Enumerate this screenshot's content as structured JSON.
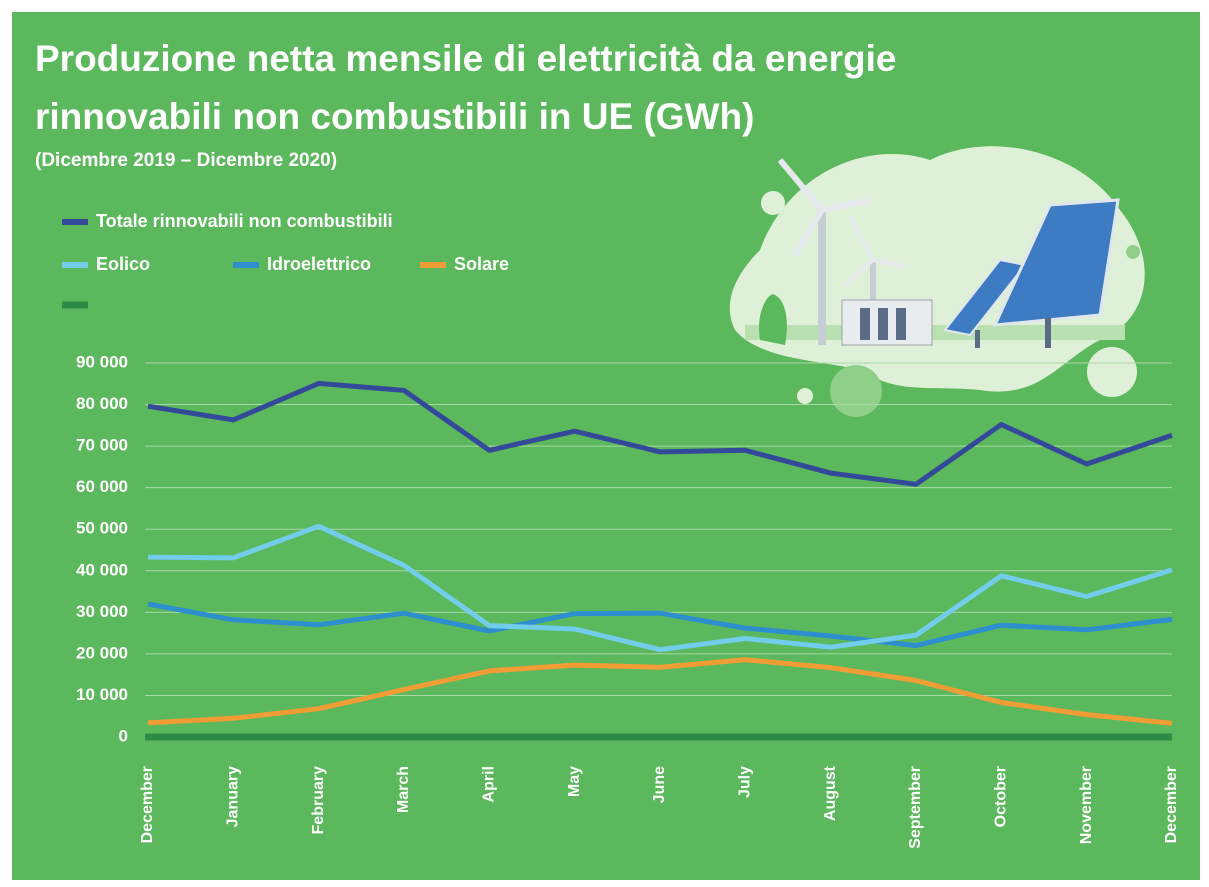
{
  "chart_data": {
    "type": "line",
    "title": "Produzione netta mensile di elettricità da energie rinnovabili non combustibili in UE (GWh)",
    "subtitle": "(Dicembre 2019 – Dicembre 2020)",
    "categories": [
      "December",
      "January",
      "February",
      "March",
      "April",
      "May",
      "June",
      "July",
      "August",
      "September",
      "October",
      "November",
      "December"
    ],
    "series": [
      {
        "name": "Totale rinnovabili non combustibili",
        "color": "#34499a",
        "values": [
          79600,
          76300,
          85100,
          83400,
          69000,
          73600,
          68600,
          69000,
          63500,
          60800,
          75200,
          65700,
          72600
        ]
      },
      {
        "name": "Eolico",
        "color": "#72cdea",
        "values": [
          43300,
          43100,
          50700,
          41300,
          26800,
          26000,
          21000,
          23700,
          21600,
          24500,
          38800,
          33800,
          40200
        ]
      },
      {
        "name": "Idroelettrico",
        "color": "#2e8fcf",
        "values": [
          32000,
          28200,
          27000,
          29800,
          25500,
          29700,
          29800,
          26200,
          24300,
          22000,
          26900,
          25800,
          28300
        ]
      },
      {
        "name": "Solare",
        "color": "#f19c34",
        "values": [
          3400,
          4500,
          6800,
          11400,
          15900,
          17300,
          16800,
          18600,
          16700,
          13600,
          8300,
          5400,
          3300
        ]
      }
    ],
    "ylim": [
      0,
      90000
    ],
    "yticks": [
      0,
      {
        "value": 10000,
        "label": "10 000"
      },
      {
        "value": 20000,
        "label": "20 000"
      },
      {
        "value": 30000,
        "label": "30 000"
      },
      {
        "value": 40000,
        "label": "40 000"
      },
      {
        "value": 50000,
        "label": "50 000"
      },
      {
        "value": 60000,
        "label": "60 000"
      },
      {
        "value": 70000,
        "label": "70 000"
      },
      {
        "value": 80000,
        "label": "80 000"
      },
      {
        "value": 90000,
        "label": "90 000"
      }
    ],
    "grid": true
  }
}
